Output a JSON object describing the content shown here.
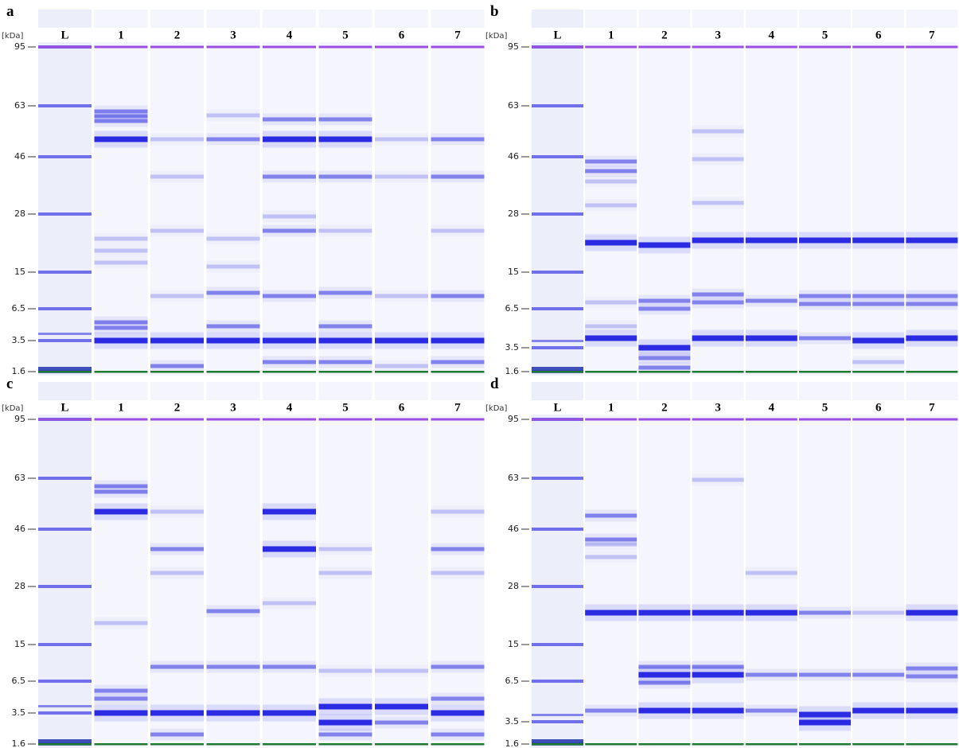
{
  "panels": [
    {
      "label": "a",
      "unit": "[kDa]",
      "lanes": [
        "L",
        "1",
        "2",
        "3",
        "4",
        "5",
        "6",
        "7"
      ],
      "ticks": [
        95,
        63,
        46,
        28,
        15,
        6.5,
        3.5,
        1.6
      ]
    },
    {
      "label": "b",
      "unit": "[kDa]",
      "lanes": [
        "L",
        "1",
        "2",
        "3",
        "4",
        "5",
        "6",
        "7"
      ],
      "ticks": [
        95,
        63,
        46,
        28,
        15,
        6.5,
        3.5,
        1.6
      ]
    },
    {
      "label": "c",
      "unit": "[kDa]",
      "lanes": [
        "L",
        "1",
        "2",
        "3",
        "4",
        "5",
        "6",
        "7"
      ],
      "ticks": [
        95,
        63,
        46,
        28,
        15,
        6.5,
        3.5,
        1.6
      ]
    },
    {
      "label": "d",
      "unit": "[kDa]",
      "lanes": [
        "L",
        "1",
        "2",
        "3",
        "4",
        "5",
        "6",
        "7"
      ],
      "ticks": [
        95,
        63,
        46,
        28,
        15,
        6.5,
        3.5,
        1.6
      ]
    }
  ]
}
